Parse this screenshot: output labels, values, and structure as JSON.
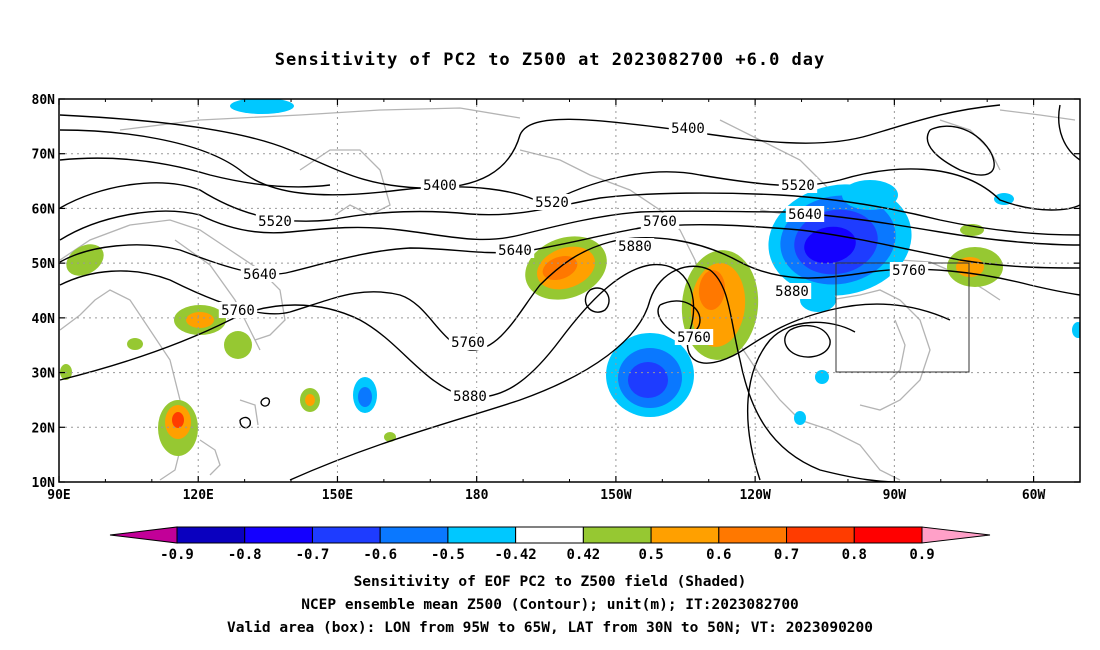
{
  "title": "Sensitivity of PC2 to Z500 at 2023082700 +6.0 day",
  "axes": {
    "lat_labels": [
      "80N",
      "70N",
      "60N",
      "50N",
      "40N",
      "30N",
      "20N",
      "10N"
    ],
    "lon_labels": [
      "90E",
      "120E",
      "150E",
      "180",
      "150W",
      "120W",
      "90W",
      "60W"
    ],
    "lon_range": [
      90,
      310
    ],
    "lat_range": [
      10,
      80
    ],
    "grid": "dotted"
  },
  "contour_labels": [
    "5400",
    "5400",
    "5520",
    "5520",
    "5520",
    "5640",
    "5640",
    "5640",
    "5760",
    "5760",
    "5760",
    "5760",
    "5760",
    "5880",
    "5880",
    "5880"
  ],
  "colorbar": {
    "tick_labels": [
      "-0.9",
      "-0.8",
      "-0.7",
      "-0.6",
      "-0.5",
      "-0.42",
      "0.42",
      "0.5",
      "0.6",
      "0.7",
      "0.8",
      "0.9"
    ],
    "colors": [
      "#c20098",
      "#0a00bf",
      "#1400ff",
      "#1e3cff",
      "#0a78ff",
      "#00c8ff",
      "#ffffff",
      "#96c832",
      "#ffa000",
      "#ff7800",
      "#ff3c00",
      "#ff0000",
      "#ffa0c8"
    ]
  },
  "valid_box": {
    "lon_from": "95W",
    "lon_to": "65W",
    "lat_from": "30N",
    "lat_to": "50N"
  },
  "captions": [
    "Sensitivity of EOF PC2 to Z500 field (Shaded)",
    "NCEP ensemble mean Z500 (Contour); unit(m); IT:2023082700",
    "Valid area (box): LON from 95W to 65W, LAT from 30N to 50N; VT: 2023090200"
  ]
}
